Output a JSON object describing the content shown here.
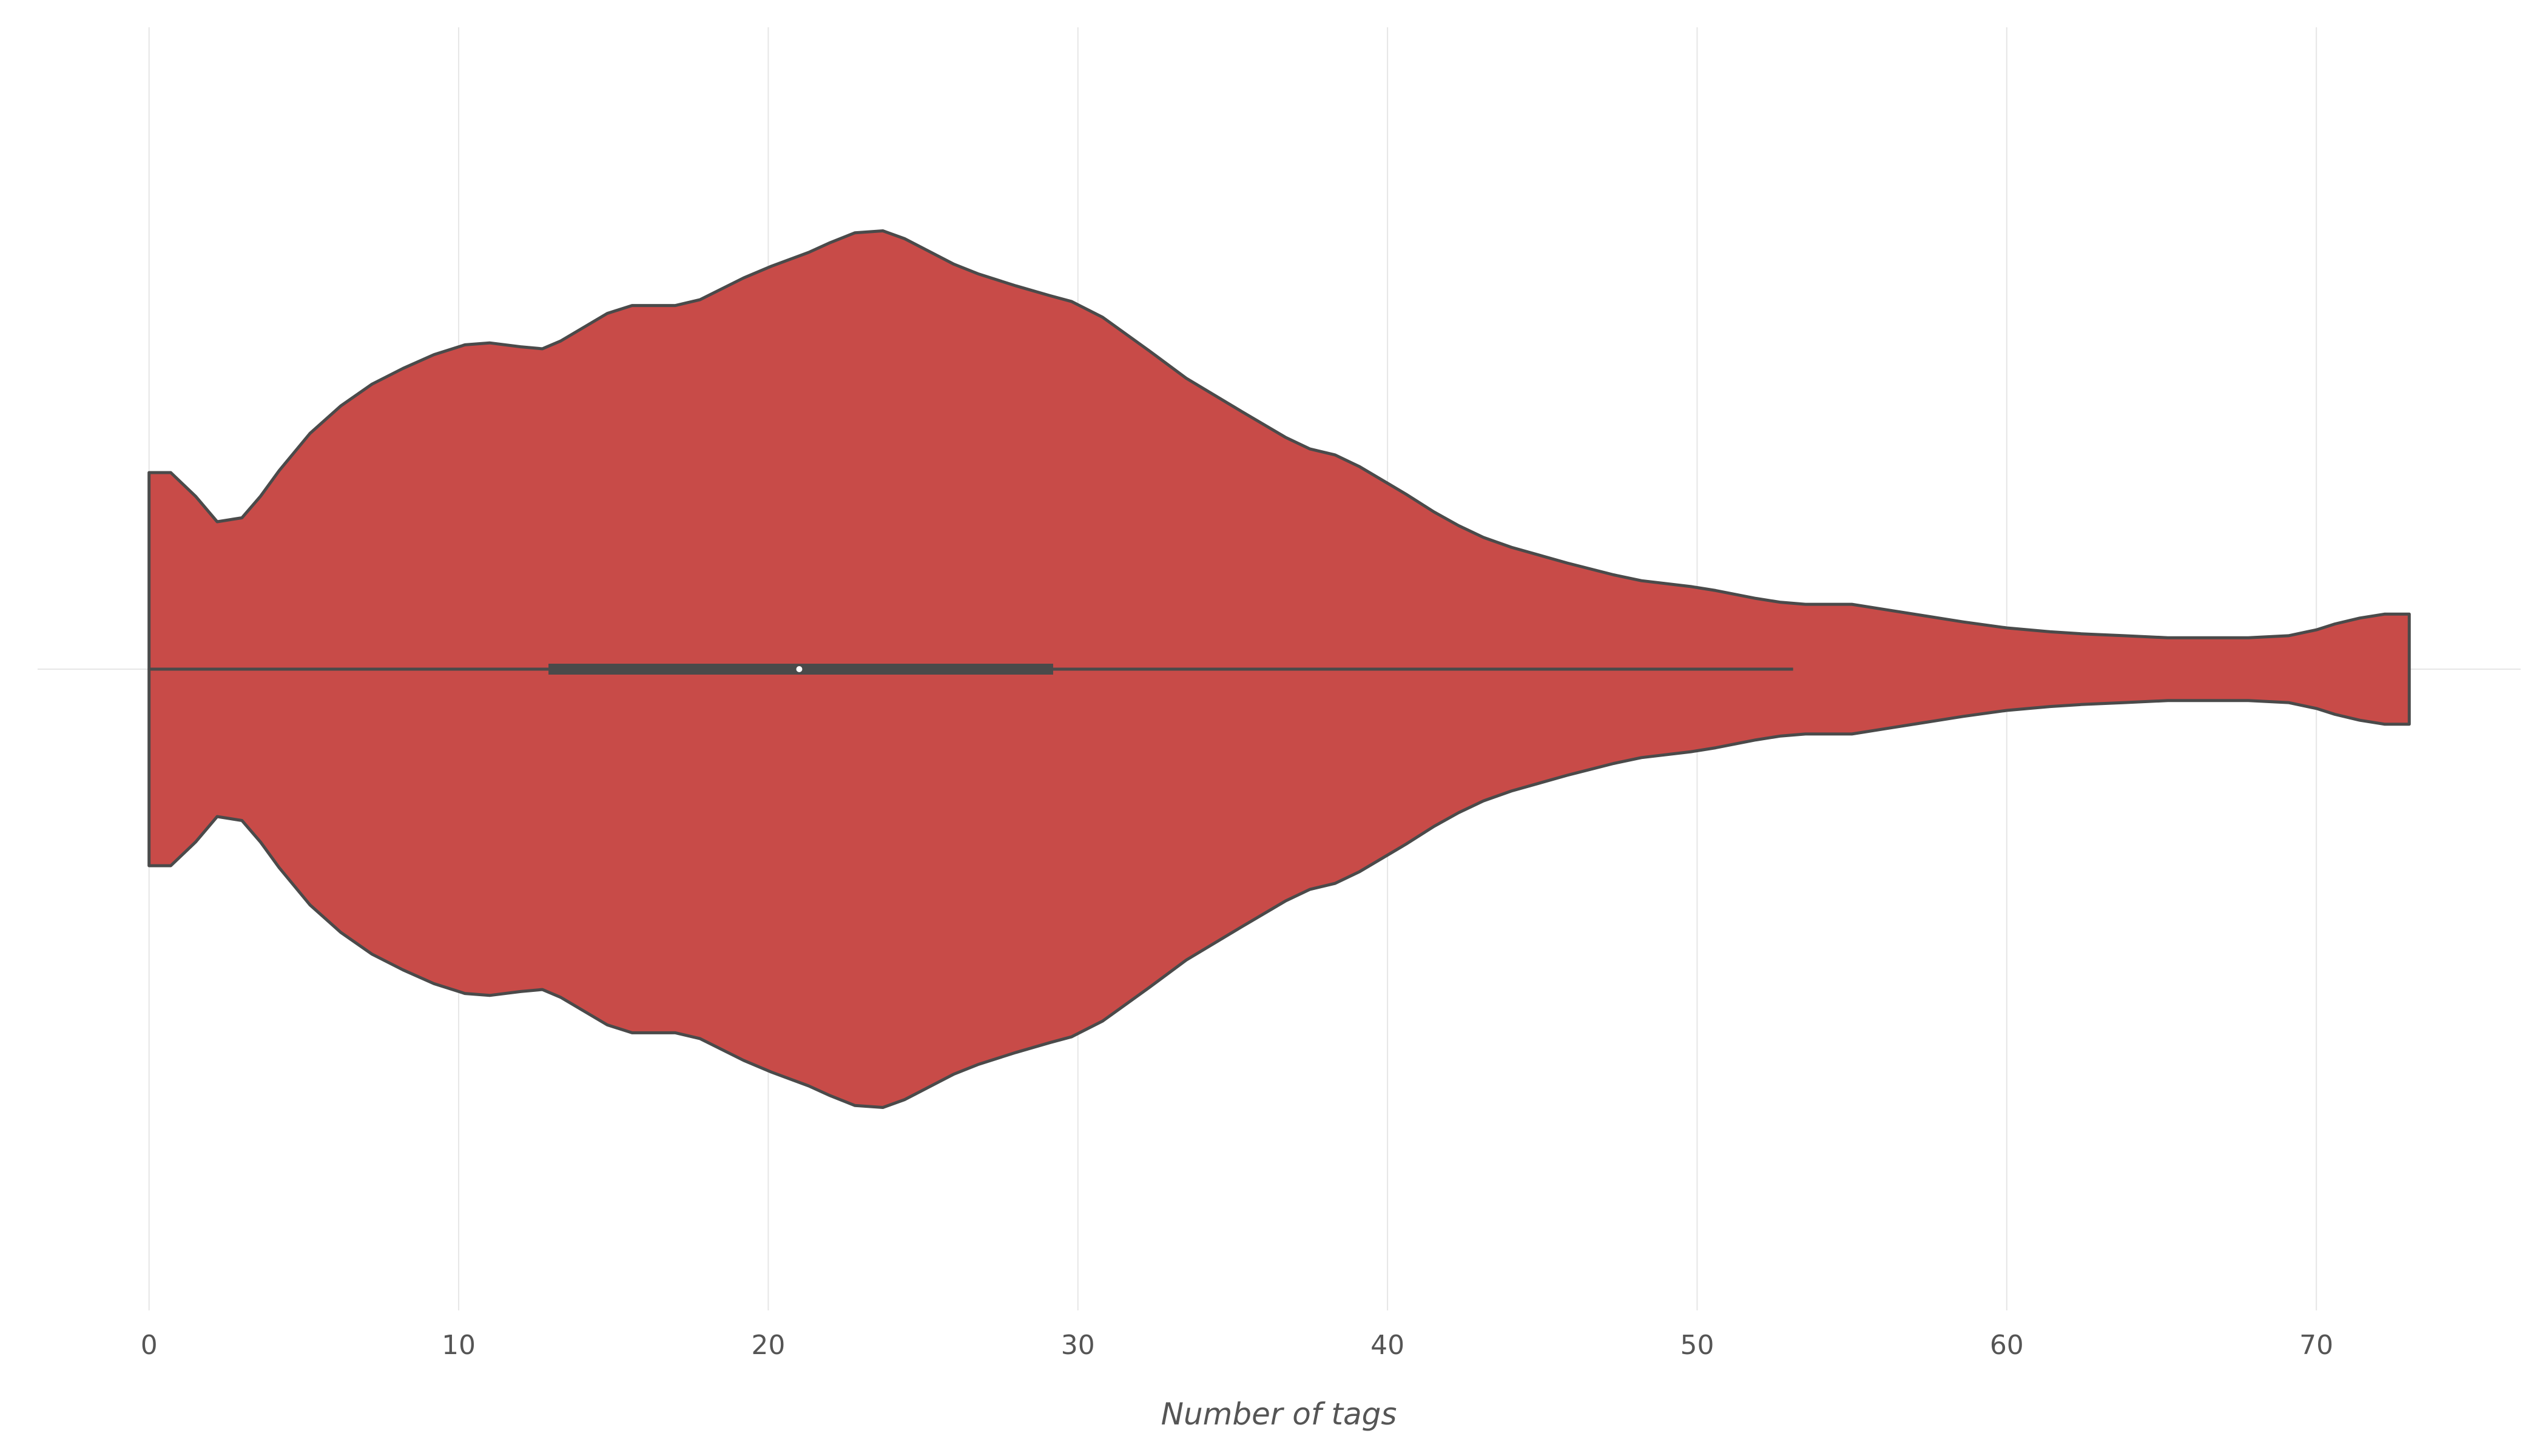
{
  "chart_data": {
    "type": "violin",
    "orientation": "horizontal",
    "xlabel": "Number of tags",
    "ylabel": "",
    "xlim": [
      -3.6,
      76.6
    ],
    "xticks": [
      0,
      10,
      20,
      30,
      40,
      50,
      60,
      70
    ],
    "grid": true,
    "colors": {
      "fill": "#c84b48",
      "outline": "#4a4a4a",
      "grid": "#e6e6e6",
      "text": "#555555",
      "median": "#ffffff"
    },
    "density": {
      "x": [
        0,
        0.7,
        1.5,
        2.2,
        3,
        3.6,
        4.2,
        5.2,
        6.2,
        7.2,
        8.2,
        9.2,
        10.2,
        11,
        12,
        12.7,
        13.3,
        14.8,
        15.6,
        17,
        17.8,
        19.2,
        20.1,
        21.3,
        22,
        22.8,
        23.7,
        24.4,
        26,
        26.8,
        28,
        29.1,
        29.8,
        30.8,
        32.3,
        33.5,
        35.3,
        36.7,
        37.5,
        38.3,
        39.1,
        40.6,
        41.5,
        42.3,
        43.1,
        44,
        45.8,
        47.3,
        48.2,
        49.8,
        50.6,
        51.9,
        52.7,
        53.5,
        55,
        56.2,
        57.4,
        58.6,
        60,
        61.4,
        62.4,
        63.8,
        65.2,
        66.6,
        67.8,
        69.1,
        70,
        70.6,
        71.4,
        72.2,
        72.9,
        73
      ],
      "half_width": [
        1.0,
        1.0,
        0.88,
        0.75,
        0.77,
        0.88,
        1.01,
        1.2,
        1.34,
        1.45,
        1.53,
        1.6,
        1.65,
        1.66,
        1.64,
        1.63,
        1.67,
        1.81,
        1.85,
        1.85,
        1.88,
        1.99,
        2.05,
        2.12,
        2.17,
        2.22,
        2.23,
        2.19,
        2.06,
        2.01,
        1.95,
        1.9,
        1.87,
        1.79,
        1.62,
        1.48,
        1.31,
        1.18,
        1.12,
        1.09,
        1.03,
        0.89,
        0.8,
        0.73,
        0.67,
        0.62,
        0.54,
        0.48,
        0.45,
        0.42,
        0.4,
        0.36,
        0.34,
        0.33,
        0.33,
        0.3,
        0.27,
        0.24,
        0.21,
        0.19,
        0.18,
        0.17,
        0.16,
        0.16,
        0.16,
        0.17,
        0.2,
        0.23,
        0.26,
        0.28,
        0.28,
        0.28
      ]
    },
    "box": {
      "whisker_low": 0,
      "q1": 12.9,
      "median": 21,
      "q3": 29.2,
      "whisker_high": 53.1
    }
  }
}
